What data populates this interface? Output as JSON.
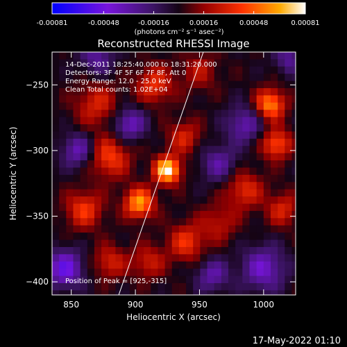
{
  "colorbar": {
    "tick_labels": [
      "-0.00081",
      "-0.00048",
      "-0.00016",
      "0.00016",
      "0.00048",
      "0.00081"
    ],
    "tick_values": [
      -0.00081,
      -0.00048,
      -0.00016,
      0.00016,
      0.00048,
      0.00081
    ],
    "range": [
      -0.00081,
      0.00081
    ],
    "unit_label": "(photons cm⁻² s⁻¹ asec⁻²)"
  },
  "chart_data": {
    "type": "heatmap",
    "title": "Reconstructed RHESSI Image",
    "xlabel": "Heliocentric X (arcsec)",
    "ylabel": "Heliocentric Y (arcsec)",
    "xlim": [
      835,
      1025
    ],
    "ylim": [
      -410,
      -225
    ],
    "x_ticks": [
      850,
      900,
      950,
      1000
    ],
    "y_ticks": [
      -250,
      -300,
      -350,
      -400
    ],
    "annotations": [
      "14-Dec-2011 18:25:40.000 to 18:31:20.000",
      "Detectors: 3F 4F 5F 6F 7F 8F, Att 0",
      "Energy Range: 12.0 - 25.0 keV",
      "Clean    Total counts: 1.02E+04"
    ],
    "peak_label": "Position of Peak = [925,-315]",
    "peak": [
      925,
      -315
    ],
    "limb_line": [
      [
        887,
        -410
      ],
      [
        953,
        -225
      ]
    ],
    "sources": [
      {
        "x": 925,
        "y": -315,
        "value": 0.00081,
        "sigma": 7
      },
      {
        "x": 903,
        "y": -340,
        "value": 0.00062,
        "sigma": 8
      },
      {
        "x": 938,
        "y": -290,
        "value": 0.0003,
        "sigma": 9
      },
      {
        "x": 880,
        "y": -305,
        "value": 0.0004,
        "sigma": 11
      },
      {
        "x": 860,
        "y": -345,
        "value": 0.00038,
        "sigma": 10
      },
      {
        "x": 870,
        "y": -265,
        "value": 0.0003,
        "sigma": 12
      },
      {
        "x": 915,
        "y": -250,
        "value": 0.00036,
        "sigma": 10
      },
      {
        "x": 950,
        "y": -240,
        "value": 0.00022,
        "sigma": 10
      },
      {
        "x": 1005,
        "y": -265,
        "value": 0.00058,
        "sigma": 8
      },
      {
        "x": 1010,
        "y": -295,
        "value": 0.00046,
        "sigma": 8
      },
      {
        "x": 985,
        "y": -330,
        "value": 0.00034,
        "sigma": 10
      },
      {
        "x": 1015,
        "y": -345,
        "value": 0.0003,
        "sigma": 9
      },
      {
        "x": 940,
        "y": -370,
        "value": 0.00036,
        "sigma": 10
      },
      {
        "x": 910,
        "y": -385,
        "value": 0.00028,
        "sigma": 9
      },
      {
        "x": 965,
        "y": -355,
        "value": 0.00024,
        "sigma": 10
      },
      {
        "x": 880,
        "y": -385,
        "value": 0.0003,
        "sigma": 9
      },
      {
        "x": 965,
        "y": -310,
        "value": -0.0003,
        "sigma": 10
      },
      {
        "x": 895,
        "y": -280,
        "value": -0.0004,
        "sigma": 9
      },
      {
        "x": 855,
        "y": -300,
        "value": -0.00036,
        "sigma": 9
      },
      {
        "x": 985,
        "y": -280,
        "value": -0.00034,
        "sigma": 10
      },
      {
        "x": 845,
        "y": -390,
        "value": -0.0005,
        "sigma": 10
      },
      {
        "x": 1000,
        "y": -390,
        "value": -0.0004,
        "sigma": 12
      },
      {
        "x": 870,
        "y": -230,
        "value": -0.0003,
        "sigma": 9
      },
      {
        "x": 960,
        "y": -395,
        "value": -0.00032,
        "sigma": 9
      },
      {
        "x": 1020,
        "y": -230,
        "value": -0.00028,
        "sigma": 8
      }
    ]
  },
  "footer": {
    "date": "17-May-2022 01:10"
  }
}
